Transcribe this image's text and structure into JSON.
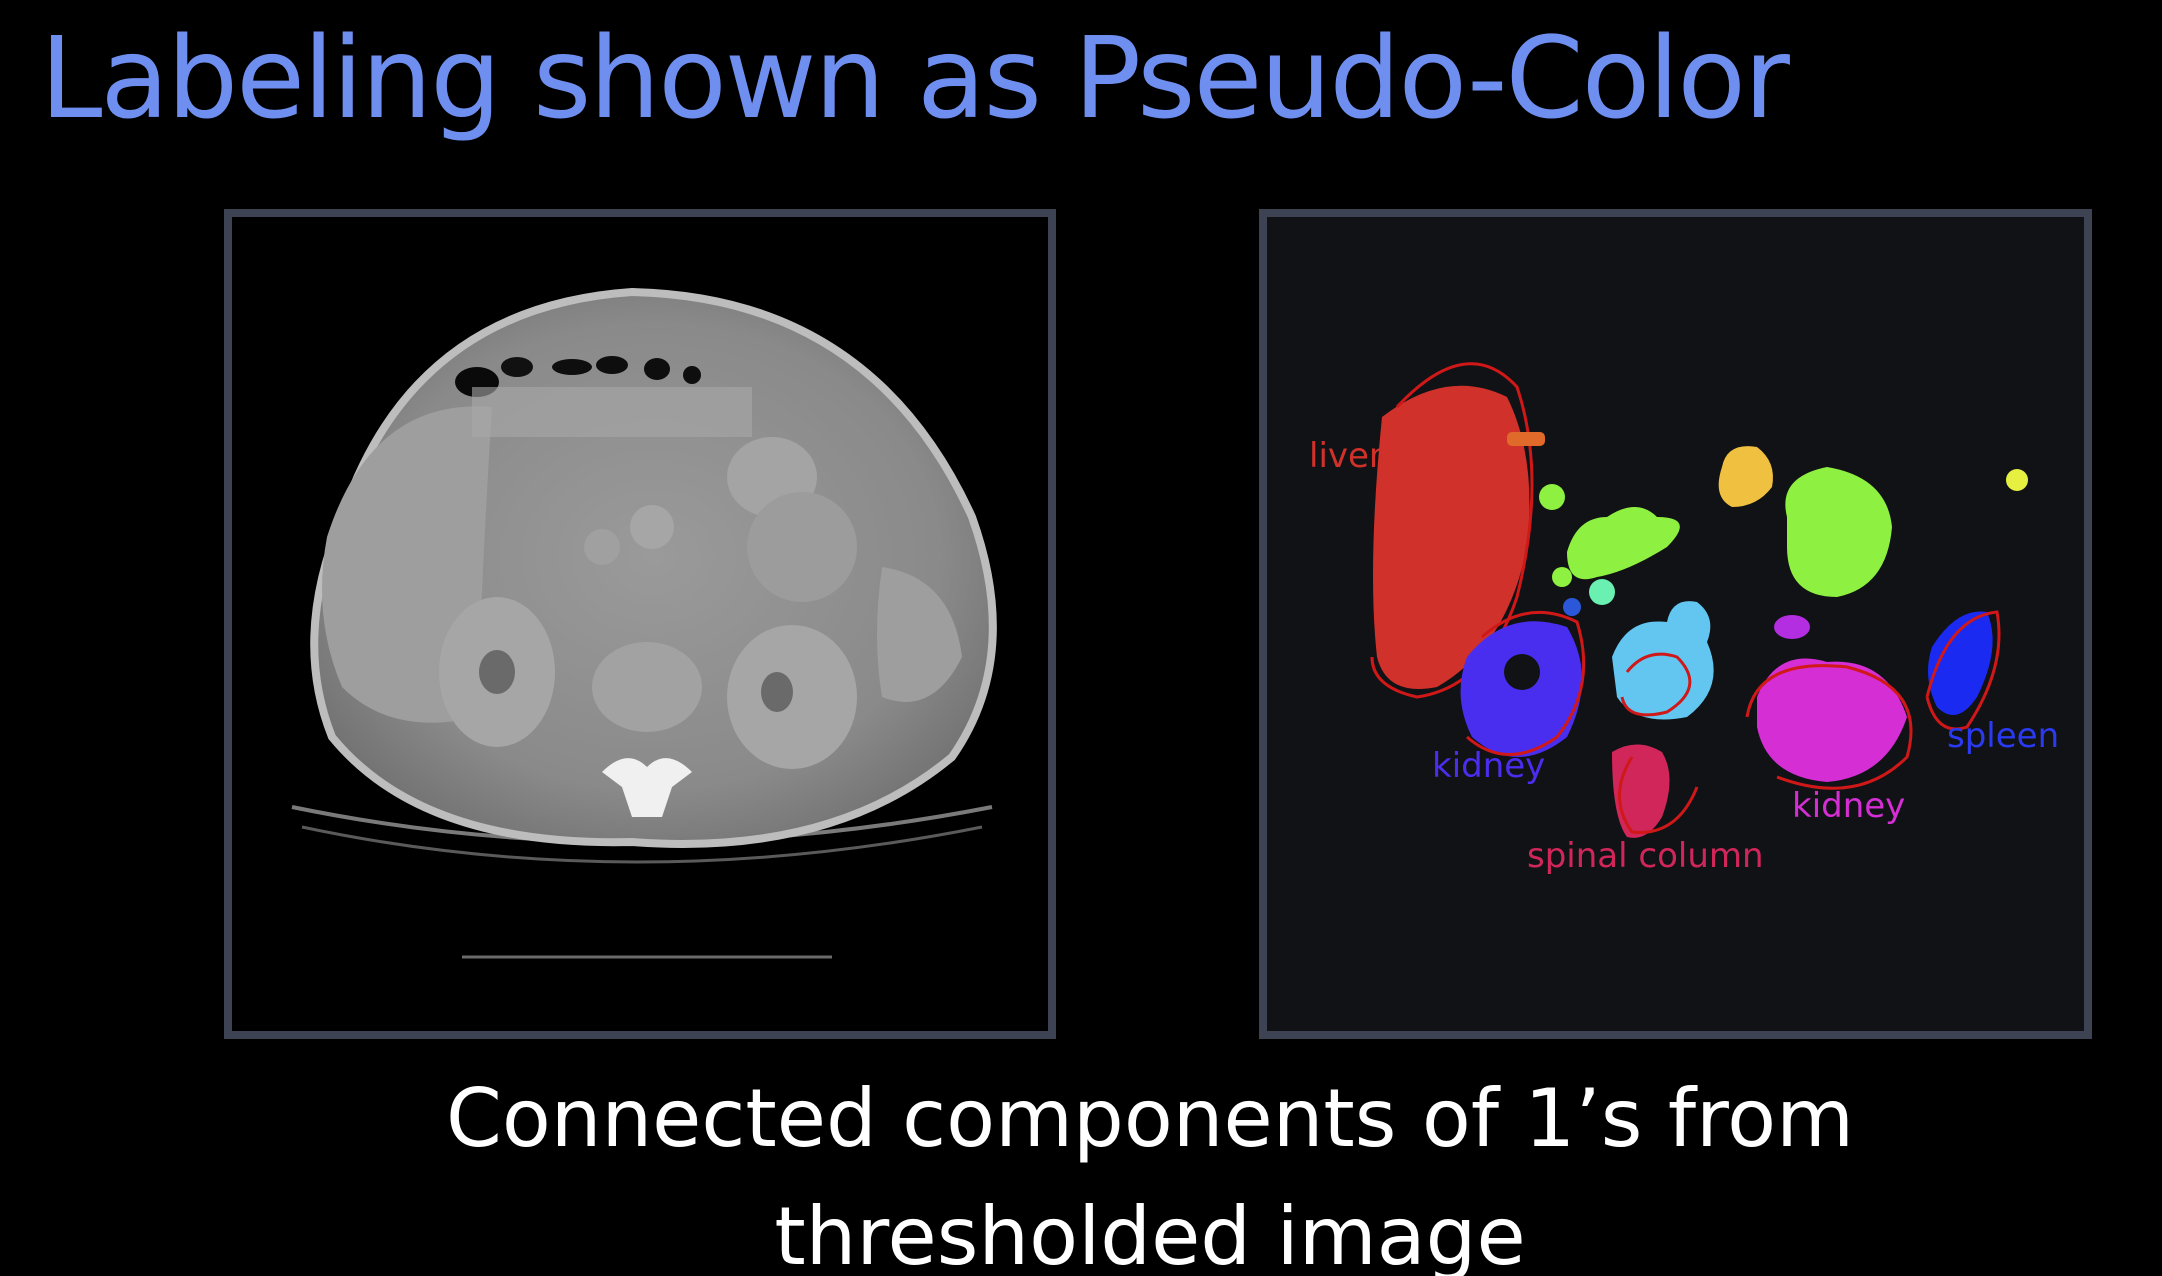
{
  "slide": {
    "title": "Labeling shown as Pseudo-Color",
    "caption_line1": "Connected components of 1’s from",
    "caption_line2": "thresholded image"
  },
  "labels": {
    "liver": "liver",
    "kidney_left": "kidney",
    "kidney_right": "kidney",
    "spinal_column": "spinal column",
    "spleen": "spleen"
  },
  "colors": {
    "title": "#6f8ff0",
    "liver": "#d0312a",
    "kidney_left": "#4a2ef0",
    "kidney_right": "#d52ed4",
    "spinal_column": "#d1265a",
    "spleen": "#1a2af0",
    "annotation_ink": "#d01818"
  }
}
